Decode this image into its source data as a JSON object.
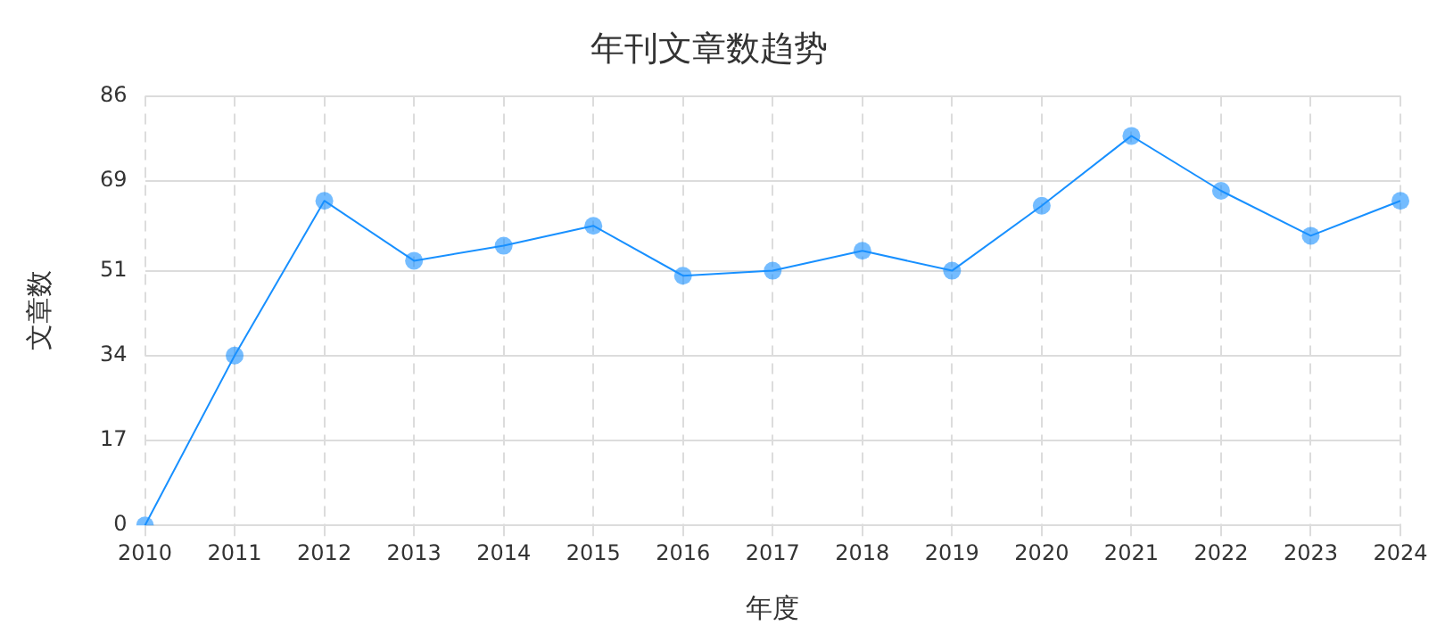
{
  "chart_data": {
    "type": "line",
    "title": "年刊文章数趋势",
    "xlabel": "年度",
    "ylabel": "文章数",
    "categories": [
      "2010",
      "2011",
      "2012",
      "2013",
      "2014",
      "2015",
      "2016",
      "2017",
      "2018",
      "2019",
      "2020",
      "2021",
      "2022",
      "2023",
      "2024"
    ],
    "series": [
      {
        "color": "#1890ff",
        "values": [
          0,
          34,
          65,
          53,
          56,
          60,
          50,
          51,
          55,
          51,
          64,
          78,
          67,
          58,
          65
        ]
      }
    ],
    "ylim": [
      0,
      86
    ],
    "yticks": [
      0,
      17,
      34,
      51,
      69,
      86
    ],
    "grid": true,
    "legend": false,
    "marker": "circle",
    "line_style": "solid"
  }
}
